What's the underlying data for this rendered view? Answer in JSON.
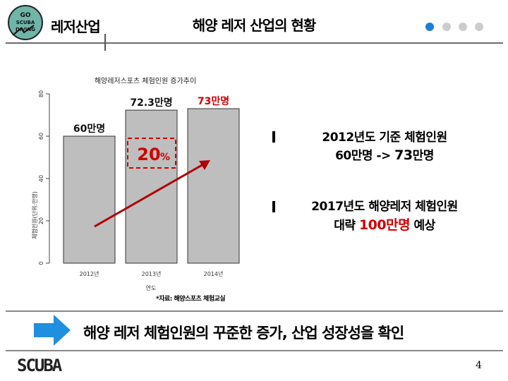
{
  "header": {
    "logo_text": "GO SCUBA DIVING",
    "section": "레저산업",
    "title": "해양 레저 산업의 현황",
    "dots": [
      "#1f7ed6",
      "#cccccc",
      "#cccccc",
      "#cccccc"
    ]
  },
  "chart_data": {
    "type": "bar",
    "title": "해양레저스포츠 체험인원 증가추이",
    "categories": [
      "2012년",
      "2013년",
      "2014년"
    ],
    "values": [
      60,
      72.3,
      73
    ],
    "value_labels": [
      "60만명",
      "72.3만명",
      "73만명"
    ],
    "value_label_colors": [
      "#111111",
      "#111111",
      "#d00000"
    ],
    "xlabel": "연도",
    "ylabel": "체험인원(단위:만명)",
    "ylim": [
      0,
      80
    ],
    "yticks": [
      "0",
      "20",
      "40",
      "60",
      "80"
    ],
    "bar_color": "#bebebe",
    "annotation": {
      "text": "20%",
      "unit": "%",
      "value": "20",
      "color": "#d00000"
    },
    "trend_arrow_color": "#b00000"
  },
  "source_note": "*자료: 해양스포츠 체험교실",
  "bullets": [
    {
      "line1": "2012년도 기준 체험인원",
      "line2_pre": "60만명 -> ",
      "line2_em": "73",
      "line2_post": "만명"
    },
    {
      "line1": "2017년도 해양레저 체험인원",
      "line2_pre": "대략 ",
      "line2_em": "100만명",
      "line2_post": " 예상"
    }
  ],
  "conclusion": "해양 레저 체험인원의 꾸준한 증가,  산업 성장성을 확인",
  "footer": {
    "logo_text": "SCUBA",
    "page_number": "4"
  }
}
